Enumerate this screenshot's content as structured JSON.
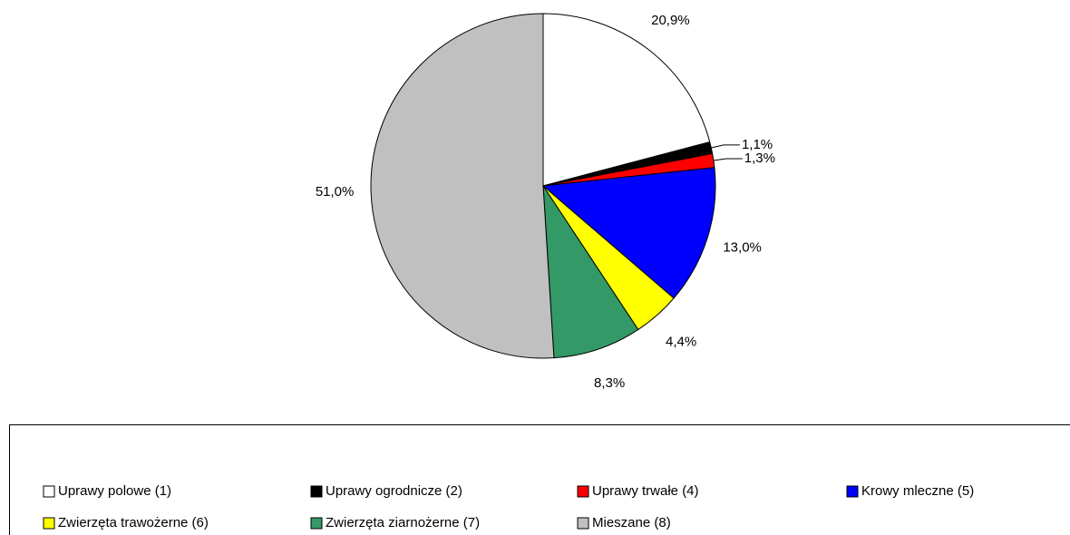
{
  "chart_data": {
    "type": "pie",
    "categories": [
      "Uprawy polowe  (1)",
      "Uprawy ogrodnicze  (2)",
      "Uprawy trwałe  (4)",
      "Krowy mleczne  (5)",
      "Zwierzęta trawożerne  (6)",
      "Zwierzęta ziarnożerne  (7)",
      "Mieszane  (8)"
    ],
    "values": [
      20.9,
      1.1,
      1.3,
      13.0,
      4.4,
      8.3,
      51.0
    ],
    "value_labels": [
      "20,9%",
      "1,1%",
      "1,3%",
      "13,0%",
      "4,4%",
      "8,3%",
      "51,0%"
    ],
    "colors": [
      "#ffffff",
      "#000000",
      "#ff0000",
      "#0000ff",
      "#ffff00",
      "#339966",
      "#c0c0c0"
    ],
    "legend": "bottom"
  }
}
